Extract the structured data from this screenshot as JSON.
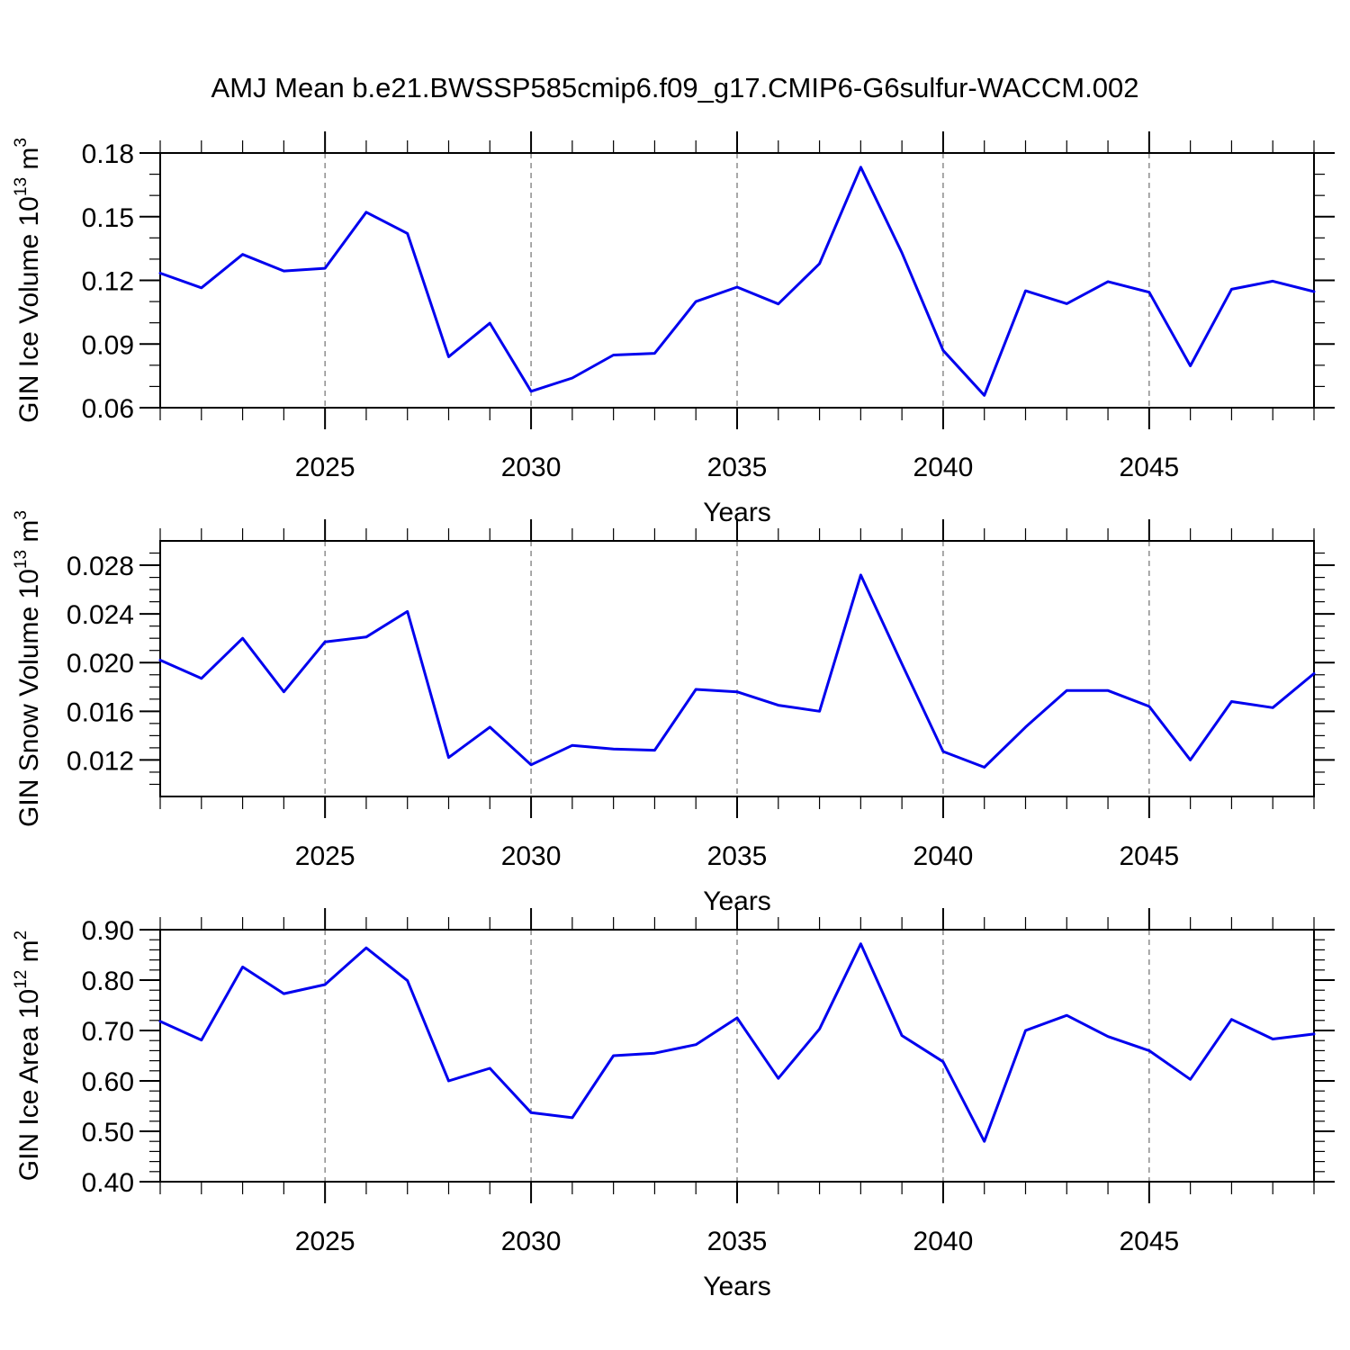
{
  "title": "AMJ Mean b.e21.BWSSP585cmip6.f09_g17.CMIP6-G6sulfur-WACCM.002",
  "colors": {
    "line": "#0000ee",
    "grid": "#7a7a7a",
    "axis": "#000000"
  },
  "chart_data": [
    {
      "name": "gin-ice-volume",
      "type": "line",
      "xlabel": "Years",
      "ylabel_segments": [
        {
          "t": "GIN Ice Volume 10"
        },
        {
          "t": "13",
          "sup": true
        },
        {
          "t": " m"
        },
        {
          "t": "3",
          "sup": true
        }
      ],
      "x": [
        2021,
        2022,
        2023,
        2024,
        2025,
        2026,
        2027,
        2028,
        2029,
        2030,
        2031,
        2032,
        2033,
        2034,
        2035,
        2036,
        2037,
        2038,
        2039,
        2040,
        2041,
        2042,
        2043,
        2044,
        2045,
        2046,
        2047,
        2048,
        2049
      ],
      "values": [
        0.1234,
        0.1165,
        0.1322,
        0.1244,
        0.1257,
        0.1521,
        0.1421,
        0.084,
        0.0998,
        0.0677,
        0.074,
        0.0848,
        0.0856,
        0.11,
        0.1168,
        0.1089,
        0.1279,
        0.1733,
        0.133,
        0.087,
        0.0658,
        0.1151,
        0.109,
        0.1194,
        0.1144,
        0.0797,
        0.1158,
        0.1196,
        0.1147
      ],
      "xlim": [
        2021,
        2049
      ],
      "ylim": [
        0.06,
        0.18
      ],
      "xticks": {
        "major": [
          2025,
          2030,
          2035,
          2040,
          2045
        ],
        "labels": [
          "2025",
          "2030",
          "2035",
          "2040",
          "2045"
        ],
        "minor_step": 1
      },
      "yticks": {
        "major": [
          0.06,
          0.09,
          0.12,
          0.15,
          0.18
        ],
        "labels": [
          "0.06",
          "0.09",
          "0.12",
          "0.15",
          "0.18"
        ],
        "minor_step": 0.01
      },
      "grid_x": true
    },
    {
      "name": "gin-snow-volume",
      "type": "line",
      "xlabel": "Years",
      "ylabel_segments": [
        {
          "t": "GIN Snow Volume 10"
        },
        {
          "t": "13",
          "sup": true
        },
        {
          "t": " m"
        },
        {
          "t": "3",
          "sup": true
        }
      ],
      "x": [
        2021,
        2022,
        2023,
        2024,
        2025,
        2026,
        2027,
        2028,
        2029,
        2030,
        2031,
        2032,
        2033,
        2034,
        2035,
        2036,
        2037,
        2038,
        2039,
        2040,
        2041,
        2042,
        2043,
        2044,
        2045,
        2046,
        2047,
        2048,
        2049
      ],
      "values": [
        0.0202,
        0.0187,
        0.022,
        0.0176,
        0.0217,
        0.0221,
        0.0242,
        0.0122,
        0.0147,
        0.0116,
        0.0132,
        0.0129,
        0.0128,
        0.0178,
        0.0176,
        0.0165,
        0.016,
        0.0272,
        0.0199,
        0.0127,
        0.0114,
        0.0147,
        0.0177,
        0.0177,
        0.0164,
        0.012,
        0.0168,
        0.0163,
        0.0191
      ],
      "xlim": [
        2021,
        2049
      ],
      "ylim": [
        0.009,
        0.03
      ],
      "xticks": {
        "major": [
          2025,
          2030,
          2035,
          2040,
          2045
        ],
        "labels": [
          "2025",
          "2030",
          "2035",
          "2040",
          "2045"
        ],
        "minor_step": 1
      },
      "yticks": {
        "major": [
          0.012,
          0.016,
          0.02,
          0.024,
          0.028
        ],
        "labels": [
          "0.012",
          "0.016",
          "0.020",
          "0.024",
          "0.028"
        ],
        "minor_step": 0.001
      },
      "grid_x": true
    },
    {
      "name": "gin-ice-area",
      "type": "line",
      "xlabel": "Years",
      "ylabel_segments": [
        {
          "t": "GIN Ice Area 10"
        },
        {
          "t": "12",
          "sup": true
        },
        {
          "t": " m"
        },
        {
          "t": "2",
          "sup": true
        }
      ],
      "x": [
        2021,
        2022,
        2023,
        2024,
        2025,
        2026,
        2027,
        2028,
        2029,
        2030,
        2031,
        2032,
        2033,
        2034,
        2035,
        2036,
        2037,
        2038,
        2039,
        2040,
        2041,
        2042,
        2043,
        2044,
        2045,
        2046,
        2047,
        2048,
        2049
      ],
      "values": [
        0.718,
        0.681,
        0.826,
        0.773,
        0.791,
        0.864,
        0.799,
        0.6,
        0.625,
        0.537,
        0.527,
        0.65,
        0.655,
        0.672,
        0.725,
        0.605,
        0.703,
        0.872,
        0.69,
        0.638,
        0.48,
        0.7,
        0.73,
        0.688,
        0.66,
        0.603,
        0.722,
        0.683,
        0.693
      ],
      "xlim": [
        2021,
        2049
      ],
      "ylim": [
        0.4,
        0.9
      ],
      "xticks": {
        "major": [
          2025,
          2030,
          2035,
          2040,
          2045
        ],
        "labels": [
          "2025",
          "2030",
          "2035",
          "2040",
          "2045"
        ],
        "minor_step": 1
      },
      "yticks": {
        "major": [
          0.4,
          0.5,
          0.6,
          0.7,
          0.8,
          0.9
        ],
        "labels": [
          "0.40",
          "0.50",
          "0.60",
          "0.70",
          "0.80",
          "0.90"
        ],
        "minor_step": 0.02
      },
      "grid_x": true
    }
  ]
}
